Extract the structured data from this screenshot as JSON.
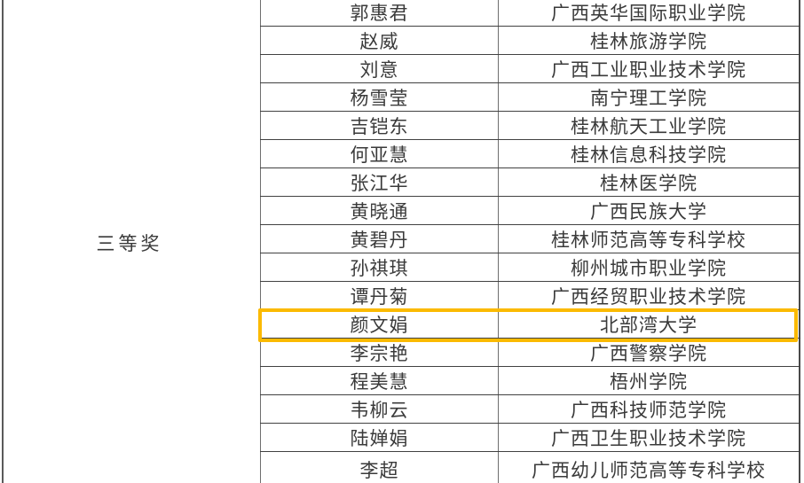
{
  "document": {
    "prize_label": "三等奖",
    "rows": [
      {
        "name": "郭惠君",
        "school": "广西英华国际职业学院",
        "highlighted": false
      },
      {
        "name": "赵威",
        "school": "桂林旅游学院",
        "highlighted": false
      },
      {
        "name": "刘意",
        "school": "广西工业职业技术学院",
        "highlighted": false
      },
      {
        "name": "杨雪莹",
        "school": "南宁理工学院",
        "highlighted": false
      },
      {
        "name": "吉铠东",
        "school": "桂林航天工业学院",
        "highlighted": false
      },
      {
        "name": "何亚慧",
        "school": "桂林信息科技学院",
        "highlighted": false
      },
      {
        "name": "张江华",
        "school": "桂林医学院",
        "highlighted": false
      },
      {
        "name": "黄晓通",
        "school": "广西民族大学",
        "highlighted": false
      },
      {
        "name": "黄碧丹",
        "school": "桂林师范高等专科学校",
        "highlighted": false
      },
      {
        "name": "孙祺琪",
        "school": "柳州城市职业学院",
        "highlighted": false
      },
      {
        "name": "谭丹菊",
        "school": "广西经贸职业技术学院",
        "highlighted": false
      },
      {
        "name": "颜文娟",
        "school": "北部湾大学",
        "highlighted": true
      },
      {
        "name": "李宗艳",
        "school": "广西警察学院",
        "highlighted": false
      },
      {
        "name": "程美慧",
        "school": "梧州学院",
        "highlighted": false
      },
      {
        "name": "韦柳云",
        "school": "广西科技师范学院",
        "highlighted": false
      },
      {
        "name": "陆婵娟",
        "school": "广西卫生职业技术学院",
        "highlighted": false
      },
      {
        "name": "李超",
        "school": "广西幼儿师范高等专科学校",
        "highlighted": false
      }
    ],
    "highlight": {
      "row_name": "颜文娟",
      "color": "#FBBA00"
    },
    "colors": {
      "text": "#3A3A3A",
      "grid_line": "#414141",
      "column_divider": "#6E6E6E",
      "highlight_border": "#FBBA00",
      "background": "#FFFFFF"
    }
  }
}
